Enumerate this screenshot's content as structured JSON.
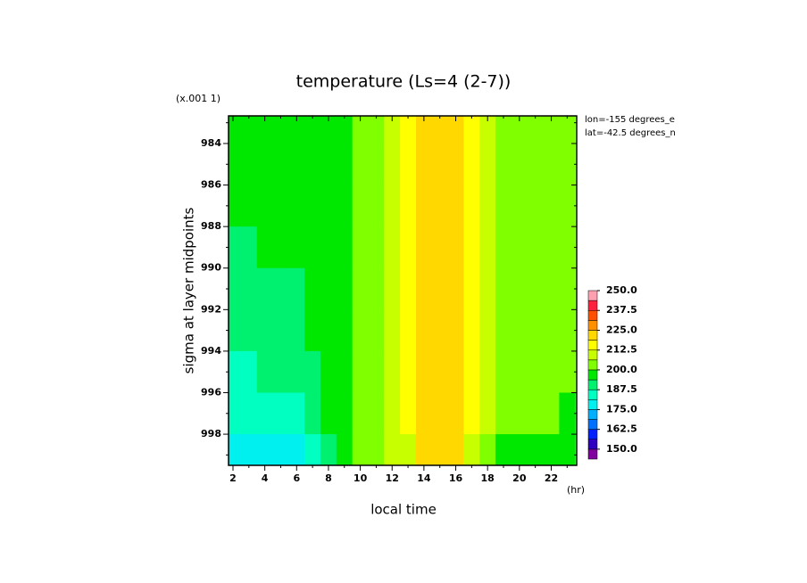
{
  "chart_data": {
    "type": "contour",
    "title": "temperature (Ls=4 (2-7))",
    "y_scale_label": "(x.001 1)",
    "x_unit_label": "(hr)",
    "xlabel": "local time",
    "ylabel": "sigma at layer midpoints",
    "annotations": [
      "lon=-155 degrees_e",
      "lat=-42.5 degrees_n"
    ],
    "xlim": [
      1.72,
      23.6
    ],
    "xticks": [
      2,
      4,
      6,
      8,
      10,
      12,
      14,
      16,
      18,
      20,
      22
    ],
    "xminorticks": [
      3,
      5,
      7,
      9,
      11,
      13,
      15,
      17,
      19,
      21,
      23
    ],
    "ylim": [
      999.5,
      982.67
    ],
    "yticks": [
      984,
      986,
      988,
      990,
      992,
      994,
      996,
      998
    ],
    "yminorticks": [
      983,
      985,
      987,
      989,
      991,
      993,
      995,
      997,
      999
    ],
    "x": [
      2,
      3,
      4,
      5,
      6,
      7,
      8,
      9,
      10,
      11,
      12,
      13,
      14,
      15,
      16,
      17,
      18,
      19,
      20,
      21,
      22,
      23
    ],
    "y": [
      983,
      985,
      987,
      989,
      991,
      993,
      995,
      997,
      999
    ],
    "z": [
      [
        196,
        196,
        195,
        195,
        195,
        196,
        196,
        198,
        203,
        206,
        209,
        213,
        220,
        221,
        220,
        214,
        210,
        206,
        204,
        202,
        201,
        201
      ],
      [
        195,
        195,
        195,
        195,
        195,
        196,
        196,
        198,
        203,
        206,
        209,
        213,
        220,
        221,
        220,
        214,
        210,
        206,
        204,
        202,
        201,
        201
      ],
      [
        194,
        194,
        194,
        194,
        194,
        195,
        196,
        198,
        203,
        206,
        209,
        213,
        220,
        221,
        220,
        214,
        210,
        206,
        204,
        202,
        201,
        201
      ],
      [
        192,
        193,
        194,
        194,
        194,
        195,
        196,
        198,
        203,
        206,
        209,
        213,
        220,
        221,
        220,
        214,
        210,
        206,
        204,
        202,
        201,
        201
      ],
      [
        191,
        192,
        193,
        193,
        193,
        194,
        196,
        198,
        203,
        206,
        209,
        213,
        220,
        221,
        220,
        214,
        210,
        206,
        203,
        202,
        201,
        201
      ],
      [
        190,
        190,
        191,
        192,
        192,
        194,
        196,
        198,
        203,
        206,
        209,
        213,
        220,
        221,
        220,
        214,
        209,
        205,
        203,
        201,
        200,
        200
      ],
      [
        186,
        187,
        188,
        189,
        189,
        192,
        195,
        198,
        203,
        206,
        209,
        213,
        220,
        221,
        220,
        213,
        209,
        204,
        202,
        201,
        200,
        200
      ],
      [
        182,
        182,
        183,
        184,
        186,
        190,
        194,
        198,
        203,
        206,
        209,
        213,
        220,
        221,
        220,
        213,
        208,
        202,
        200,
        200,
        200,
        199
      ],
      [
        177,
        177,
        178,
        178,
        180,
        186,
        192,
        197,
        202,
        205,
        208,
        212,
        219,
        220,
        219,
        212,
        205,
        198,
        197,
        197,
        198,
        198
      ]
    ],
    "colorbar": {
      "levels": [
        143.75,
        150,
        156.25,
        162.5,
        168.75,
        175,
        181.25,
        187.5,
        193.75,
        200,
        206.25,
        212.5,
        218.75,
        225,
        231.25,
        237.5,
        243.75,
        250
      ],
      "colors": [
        "#8000a0",
        "#3000c0",
        "#0020ff",
        "#0070ff",
        "#00b0ff",
        "#00f0f0",
        "#00ffc0",
        "#00f070",
        "#00e800",
        "#80ff00",
        "#c8ff00",
        "#ffff00",
        "#ffd800",
        "#ff9000",
        "#ff5000",
        "#ff2040",
        "#ffa0b0"
      ],
      "ticks": [
        {
          "value": 150,
          "label": "150.0"
        },
        162.5,
        {
          "value": 175,
          "label": "175.0"
        },
        187.5,
        {
          "value": 200,
          "label": "200.0"
        },
        212.5,
        {
          "value": 225,
          "label": "225.0"
        },
        237.5,
        {
          "value": 250,
          "label": "250.0"
        }
      ]
    }
  }
}
